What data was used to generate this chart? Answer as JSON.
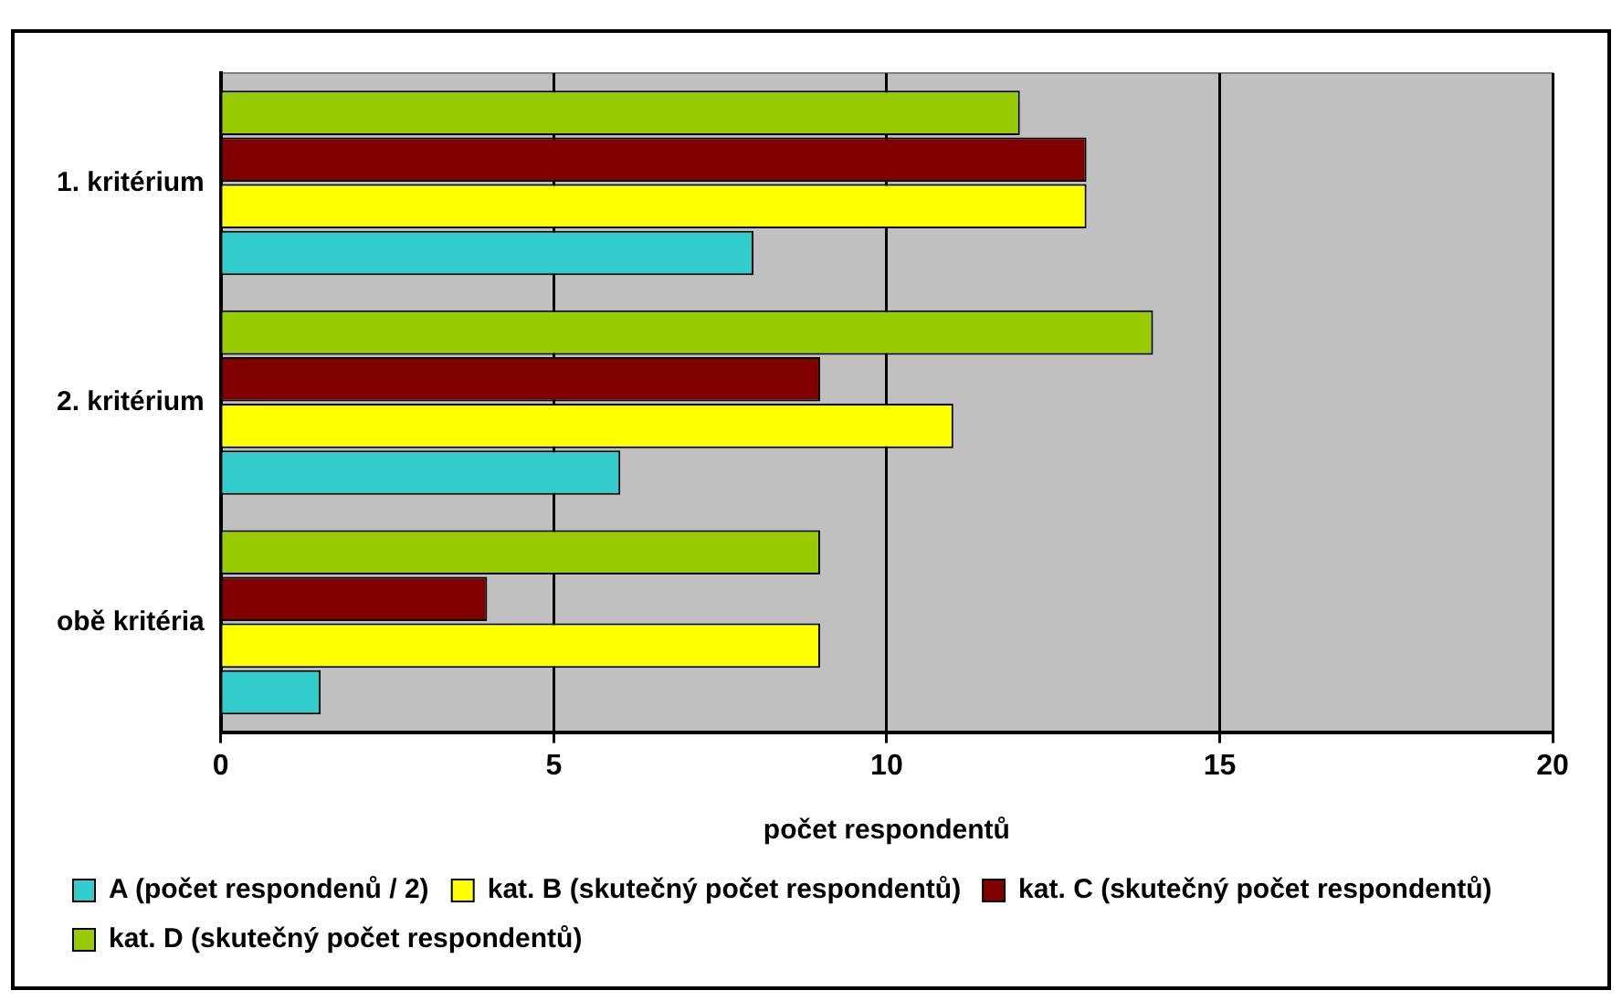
{
  "chart_data": {
    "type": "bar",
    "orientation": "horizontal",
    "xlabel": "počet respondentů",
    "categories": [
      "1. kritérium",
      "2. kritérium",
      "obě kritéria"
    ],
    "series": [
      {
        "name": "A (počet respondenů / 2)",
        "color": "#33cccc",
        "values": [
          8,
          6,
          1.5
        ]
      },
      {
        "name": "kat. B (skutečný počet respondentů)",
        "color": "#ffff00",
        "values": [
          13,
          11,
          9
        ]
      },
      {
        "name": "kat. C (skutečný počet respondentů)",
        "color": "#800000",
        "values": [
          13,
          9,
          4
        ]
      },
      {
        "name": "kat. D (skutečný počet respondentů)",
        "color": "#99cc00",
        "values": [
          12,
          14,
          9
        ]
      }
    ],
    "xlim": [
      0,
      20
    ],
    "xticks": [
      0,
      5,
      10,
      15,
      20
    ],
    "grid": "x",
    "legend": "bottom"
  }
}
